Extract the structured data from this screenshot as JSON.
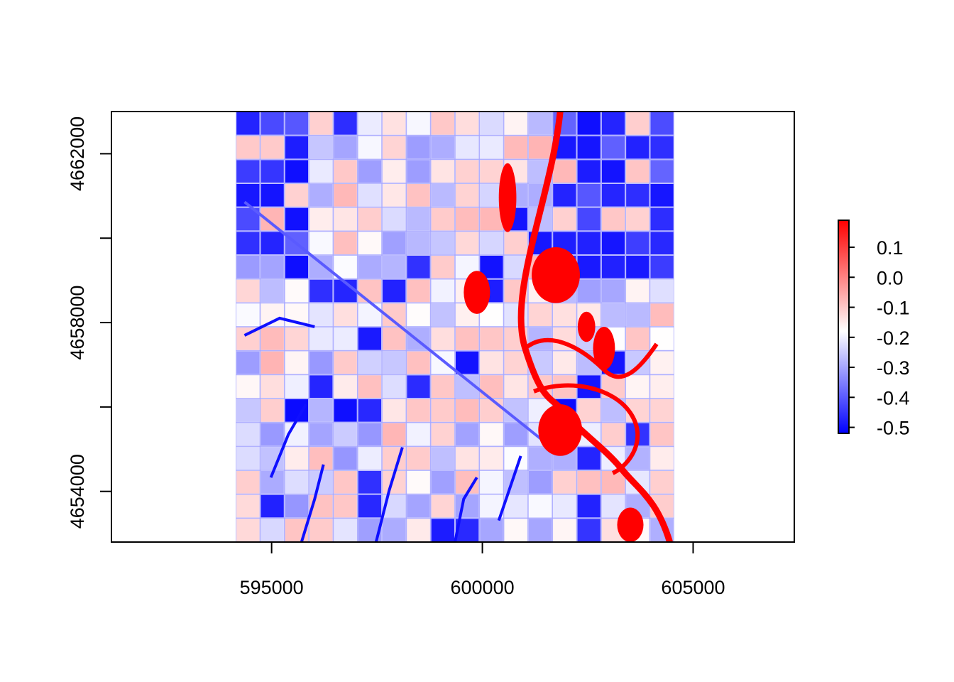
{
  "chart_data": {
    "type": "heatmap",
    "title": "",
    "xlabel": "",
    "ylabel": "",
    "xlim": [
      591200,
      607400
    ],
    "ylim": [
      4652800,
      4663000
    ],
    "raster_extent": {
      "xmin": 594150,
      "xmax": 604550,
      "ymin": 4652800,
      "ymax": 4663000
    },
    "x_ticks": [
      595000,
      600000,
      605000
    ],
    "x_tick_labels": [
      "595000",
      "600000",
      "605000"
    ],
    "y_ticks": [
      4654000,
      4656000,
      4658000,
      4660000,
      4662000
    ],
    "y_tick_labels": [
      "4654000",
      "",
      "4658000",
      "",
      "4662000"
    ],
    "colorbar": {
      "min": -0.52,
      "max": 0.19,
      "low_color": "#0000ff",
      "mid_color": "#ffffff",
      "high_color": "#ff0000",
      "mid_value": -0.18,
      "ticks": [
        0.1,
        0.0,
        -0.1,
        -0.2,
        -0.3,
        -0.4,
        -0.5
      ],
      "tick_labels": [
        "0.1",
        "0.0",
        "-0.1",
        "-0.2",
        "-0.3",
        "-0.4",
        "-0.5"
      ],
      "placement": "right"
    },
    "grid": false
  }
}
